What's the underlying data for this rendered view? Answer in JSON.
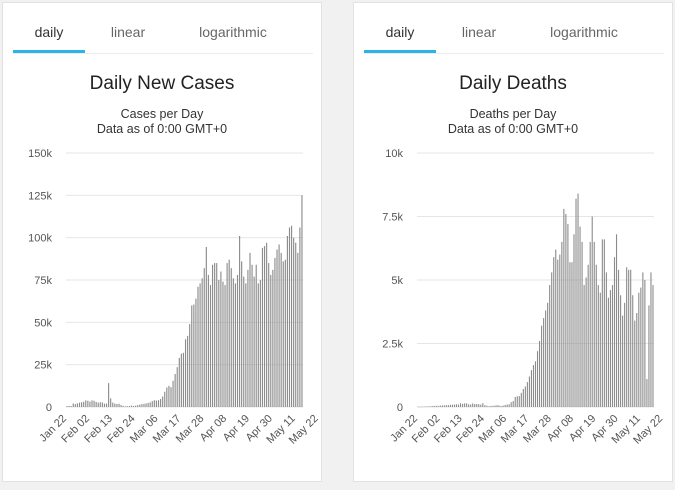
{
  "left": {
    "tabs": [
      "daily",
      "linear",
      "logarithmic"
    ],
    "active_tab": 0,
    "title": "Daily New Cases",
    "subtitle1": "Cases per Day",
    "subtitle2": "Data as of 0:00 GMT+0",
    "chart_data": {
      "type": "bar",
      "title": "Daily New Cases",
      "ylabel": "Cases per Day",
      "ylim": [
        0,
        150000
      ],
      "yticks": [
        0,
        25000,
        50000,
        75000,
        100000,
        125000,
        150000
      ],
      "ytick_labels": [
        "0",
        "25k",
        "50k",
        "75k",
        "100k",
        "125k",
        "150k"
      ],
      "xtick_labels": [
        "Jan 22",
        "Feb 02",
        "Feb 13",
        "Feb 24",
        "Mar 06",
        "Mar 17",
        "Mar 28",
        "Apr 08",
        "Apr 19",
        "Apr 30",
        "May 11",
        "May 22"
      ],
      "x_start": "Jan 22",
      "values": [
        560,
        640,
        580,
        2070,
        1700,
        2100,
        2600,
        2800,
        3100,
        3900,
        3700,
        3200,
        3900,
        3700,
        3000,
        2600,
        2800,
        2700,
        2000,
        2000,
        14100,
        5100,
        2600,
        2000,
        1800,
        1900,
        1200,
        600,
        400,
        500,
        600,
        900,
        600,
        800,
        1100,
        1400,
        1700,
        1900,
        2100,
        2400,
        2700,
        3500,
        4000,
        3800,
        4000,
        4700,
        6200,
        9000,
        11500,
        12500,
        11700,
        15500,
        19500,
        23500,
        29000,
        31500,
        32000,
        40000,
        42000,
        49000,
        60000,
        60500,
        64000,
        71000,
        73000,
        76000,
        82000,
        94500,
        78000,
        72000,
        84000,
        85000,
        85000,
        75000,
        80000,
        74000,
        72000,
        85000,
        87000,
        82000,
        76000,
        73000,
        78000,
        101000,
        86000,
        77000,
        73000,
        81000,
        91000,
        84000,
        77000,
        84000,
        73000,
        75000,
        94000,
        95000,
        97000,
        85000,
        78000,
        81000,
        88000,
        93000,
        96000,
        91000,
        86000,
        87000,
        101000,
        106000,
        107000,
        100000,
        97000,
        91000,
        106000,
        125000
      ]
    }
  },
  "right": {
    "tabs": [
      "daily",
      "linear",
      "logarithmic"
    ],
    "active_tab": 0,
    "title": "Daily Deaths",
    "subtitle1": "Deaths per Day",
    "subtitle2": "Data as of 0:00 GMT+0",
    "chart_data": {
      "type": "bar",
      "title": "Daily Deaths",
      "ylabel": "Deaths per Day",
      "ylim": [
        0,
        10000
      ],
      "yticks": [
        0,
        2500,
        5000,
        7500,
        10000
      ],
      "ytick_labels": [
        "0",
        "2.5k",
        "5k",
        "7.5k",
        "10k"
      ],
      "xtick_labels": [
        "Jan 22",
        "Feb 02",
        "Feb 13",
        "Feb 24",
        "Mar 06",
        "Mar 17",
        "Mar 28",
        "Apr 08",
        "Apr 19",
        "Apr 30",
        "May 11",
        "May 22"
      ],
      "x_start": "Jan 22",
      "values": [
        17,
        8,
        16,
        15,
        24,
        26,
        26,
        38,
        43,
        46,
        45,
        57,
        64,
        66,
        73,
        73,
        86,
        89,
        97,
        108,
        97,
        146,
        121,
        143,
        142,
        106,
        98,
        139,
        115,
        118,
        109,
        97,
        150,
        70,
        52,
        29,
        44,
        47,
        59,
        71,
        64,
        37,
        58,
        80,
        98,
        107,
        191,
        233,
        395,
        419,
        428,
        557,
        710,
        807,
        980,
        1200,
        1450,
        1650,
        1800,
        2200,
        2600,
        3200,
        3500,
        3800,
        4100,
        4800,
        5300,
        5900,
        6200,
        5800,
        6000,
        6500,
        7800,
        7600,
        7200,
        5700,
        5700,
        6800,
        8200,
        8400,
        7100,
        6500,
        4800,
        5100,
        5600,
        6500,
        7500,
        6500,
        5600,
        4800,
        4500,
        6600,
        6600,
        5300,
        4300,
        4600,
        4800,
        5900,
        6800,
        5400,
        4400,
        3600,
        4100,
        5500,
        5400,
        5400,
        4400,
        3400,
        3700,
        4500,
        4700,
        5300,
        5000,
        1100,
        4000,
        5300,
        4800
      ]
    }
  }
}
